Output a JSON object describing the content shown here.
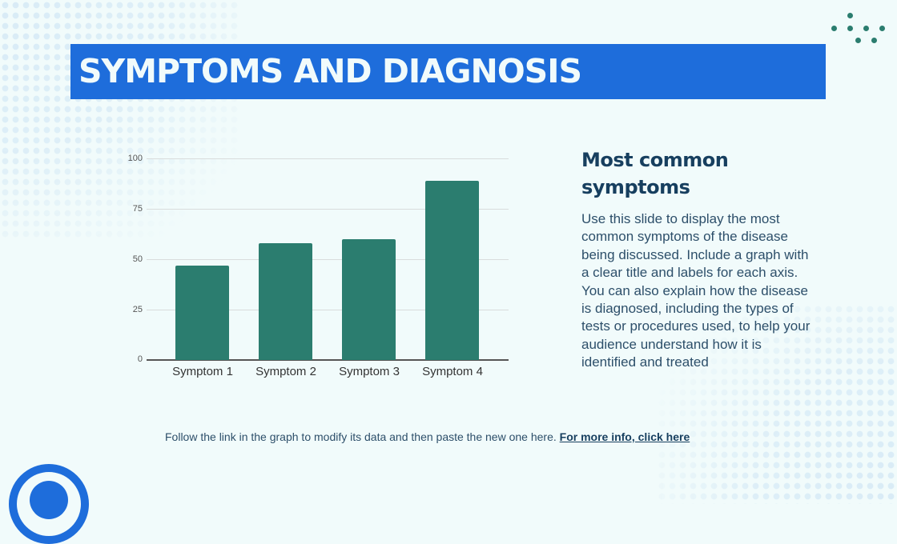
{
  "slide": {
    "title": "SYMPTOMS AND DIAGNOSIS",
    "colors": {
      "background": "#f1fbfb",
      "banner": "#1e6ddb",
      "bar": "#2b7d6f",
      "heading": "#173f5f",
      "body_text": "#2d4f6a"
    }
  },
  "side_panel": {
    "heading_line1": "Most common",
    "heading_line2": "symptoms",
    "body": "Use this slide to display the most common symptoms of the disease being discussed. Include a graph with a clear title and labels for each axis. You can also explain how the disease is diagnosed, including the types of tests or procedures used, to help your audience understand how it is identified and treated"
  },
  "footer": {
    "text": "Follow the link in the graph to modify its data and then paste the new one here. ",
    "link_text": "For more info, click here"
  },
  "chart_data": {
    "type": "bar",
    "title": "",
    "xlabel": "",
    "ylabel": "",
    "categories": [
      "Symptom 1",
      "Symptom 2",
      "Symptom 3",
      "Symptom 4"
    ],
    "values": [
      47,
      58,
      60,
      89
    ],
    "yticks": [
      "0",
      "25",
      "50",
      "75",
      "100"
    ],
    "ylim": [
      0,
      100
    ],
    "grid": true,
    "legend": "none",
    "bar_color": "#2b7d6f"
  }
}
